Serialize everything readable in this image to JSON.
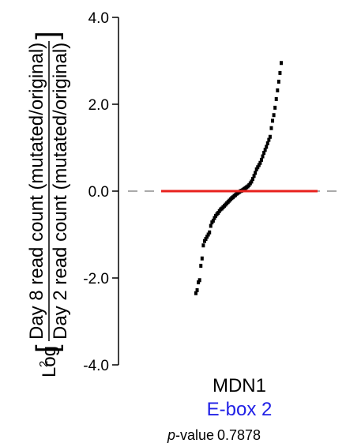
{
  "chart_data": {
    "type": "scatter",
    "title": "",
    "ylabel": {
      "prefix": "Log",
      "subscript": "2",
      "numerator": "Day 8 read count (mutated/original)",
      "denominator": "Day 2 read count (mutated/original)"
    },
    "ylim": [
      -4.0,
      4.0
    ],
    "yticks": [
      "4.0",
      "2.0",
      "0.0",
      "-2.0",
      "-4.0"
    ],
    "ytick_values": [
      4.0,
      2.0,
      0.0,
      -2.0,
      -4.0
    ],
    "category": "MDN1",
    "element": "E-box 2",
    "pvalue_label_italic": "p",
    "pvalue_label_rest": "-value",
    "pvalue": "0.7878",
    "reference_line": {
      "y": 0.0,
      "color": "#aaaaaa",
      "style": "dashed"
    },
    "median_line": {
      "y": 0.0,
      "color": "#e8211d"
    },
    "point_color": "#000000",
    "values": [
      -2.35,
      -2.28,
      -2.1,
      -2.05,
      -1.72,
      -1.55,
      -1.25,
      -1.15,
      -1.1,
      -1.05,
      -1.0,
      -0.95,
      -0.8,
      -0.72,
      -0.68,
      -0.62,
      -0.57,
      -0.53,
      -0.5,
      -0.46,
      -0.42,
      -0.4,
      -0.37,
      -0.34,
      -0.31,
      -0.28,
      -0.25,
      -0.22,
      -0.19,
      -0.16,
      -0.14,
      -0.11,
      -0.09,
      -0.06,
      -0.04,
      -0.02,
      0.0,
      0.01,
      0.03,
      0.05,
      0.07,
      0.09,
      0.11,
      0.14,
      0.18,
      0.22,
      0.28,
      0.35,
      0.42,
      0.5,
      0.55,
      0.6,
      0.65,
      0.72,
      0.8,
      0.88,
      0.95,
      1.02,
      1.1,
      1.18,
      1.25,
      1.45,
      1.62,
      1.75,
      1.92,
      2.12,
      2.32,
      2.52,
      2.72,
      2.95
    ]
  }
}
